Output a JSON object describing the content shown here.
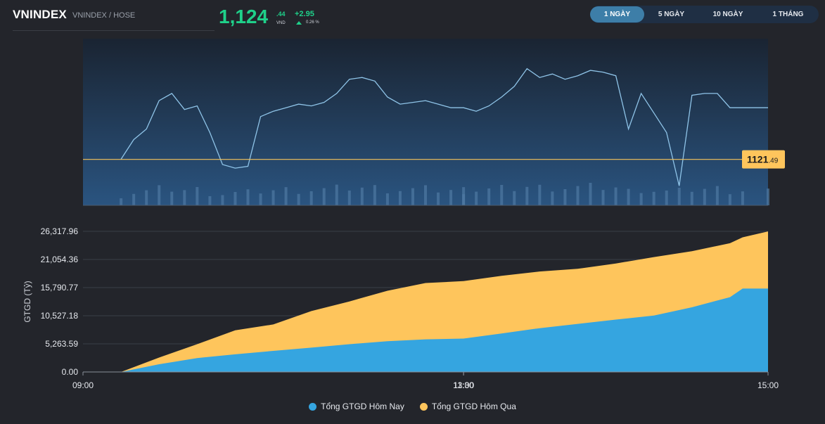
{
  "header": {
    "symbol": "VNINDEX",
    "exchange": "VNINDEX / HOSE",
    "price_int": "1,124",
    "price_dec": ".44",
    "currency": "VND",
    "change": "+2.95",
    "change_pct": "0.26 %",
    "up_color": "#1fd18a"
  },
  "range_tabs": [
    {
      "label": "1 NGÀY",
      "active": true
    },
    {
      "label": "5 NGÀY",
      "active": false
    },
    {
      "label": "10 NGÀY",
      "active": false
    },
    {
      "label": "1 THÁNG",
      "active": false
    }
  ],
  "reference_label": {
    "int": "1121",
    "dec": ".49"
  },
  "chart_data": [
    {
      "type": "line",
      "reference_value": 1121.49,
      "line_color": "#8fc4e8",
      "reference_color": "#f4c35a",
      "x_range": [
        "09:00",
        "15:00"
      ],
      "x": [
        "09:15",
        "09:20",
        "09:25",
        "09:30",
        "09:35",
        "09:40",
        "09:45",
        "09:50",
        "09:55",
        "10:00",
        "10:05",
        "10:10",
        "10:15",
        "10:20",
        "10:25",
        "10:30",
        "10:35",
        "10:40",
        "10:45",
        "10:50",
        "10:55",
        "11:00",
        "11:05",
        "11:10",
        "11:15",
        "11:20",
        "11:25",
        "11:30",
        "13:00",
        "13:05",
        "13:10",
        "13:15",
        "13:20",
        "13:25",
        "13:30",
        "13:35",
        "13:40",
        "13:45",
        "13:50",
        "13:55",
        "14:00",
        "14:05",
        "14:10",
        "14:15",
        "14:20",
        "14:25",
        "14:30",
        "14:35",
        "14:40",
        "14:45",
        "14:50",
        "15:00"
      ],
      "y": [
        1121.5,
        1122.6,
        1123.2,
        1124.8,
        1125.2,
        1124.3,
        1124.5,
        1123.0,
        1121.2,
        1121.0,
        1121.1,
        1123.9,
        1124.2,
        1124.4,
        1124.6,
        1124.5,
        1124.7,
        1125.2,
        1126.0,
        1126.1,
        1125.9,
        1125.0,
        1124.6,
        1124.7,
        1124.8,
        1124.6,
        1124.4,
        1124.4,
        1124.4,
        1124.2,
        1124.5,
        1125.0,
        1125.6,
        1126.6,
        1126.1,
        1126.3,
        1126.0,
        1126.2,
        1126.5,
        1126.4,
        1126.2,
        1123.2,
        1125.2,
        1124.1,
        1123.0,
        1120.0,
        1125.1,
        1125.2,
        1125.2,
        1124.4,
        1124.4,
        1124.4
      ],
      "volume_bars": true
    },
    {
      "type": "area",
      "ylabel": "GTGD (Tỷ)",
      "yticks": [
        "26,317.96",
        "21,054.36",
        "15,790.77",
        "10,527.18",
        "5,263.59",
        "0.00"
      ],
      "ylim": [
        0,
        26317.96
      ],
      "xticks": [
        "09:00",
        "11:30",
        "13:00",
        "15:00"
      ],
      "x": [
        "09:00",
        "09:15",
        "09:30",
        "09:45",
        "10:00",
        "10:15",
        "10:30",
        "10:45",
        "11:00",
        "11:15",
        "11:30",
        "13:00",
        "13:15",
        "13:30",
        "13:45",
        "14:00",
        "14:15",
        "14:30",
        "14:45",
        "14:50",
        "15:00"
      ],
      "series": [
        {
          "name": "Tổng GTGD Hôm Nay",
          "color": "#35a5e0",
          "values": [
            0,
            0,
            1450,
            2600,
            3300,
            3950,
            4550,
            5200,
            5750,
            6100,
            6250,
            6250,
            7200,
            8200,
            9000,
            9800,
            10550,
            12100,
            14000,
            15600,
            15600
          ]
        },
        {
          "name": "Tổng GTGD Hôm Qua",
          "color": "#fec55c",
          "values": [
            0,
            0,
            2700,
            5200,
            7800,
            8900,
            11400,
            13200,
            15200,
            16650,
            17000,
            17000,
            18000,
            18800,
            19300,
            20300,
            21500,
            22600,
            24100,
            25200,
            26300
          ]
        }
      ]
    }
  ]
}
